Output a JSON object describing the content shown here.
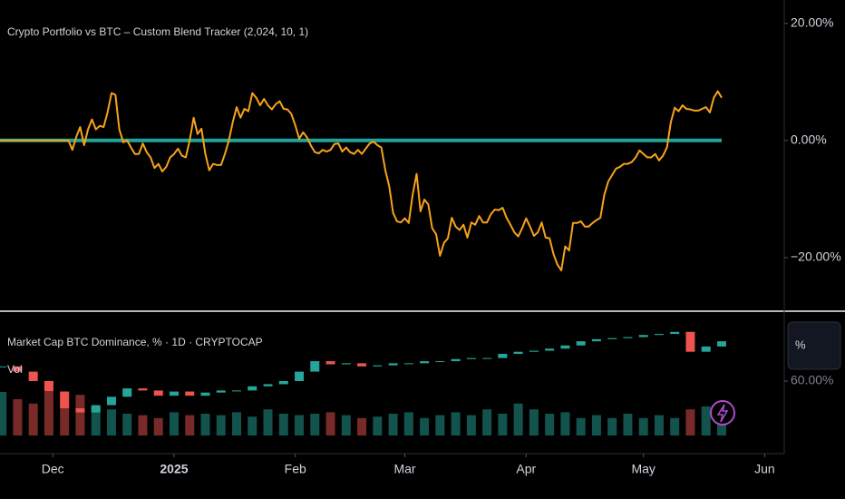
{
  "chart_data": [
    {
      "type": "line",
      "title": "Crypto Portfolio vs BTC – Custom Blend Tracker (2,024, 10, 1)",
      "series": [
        {
          "color": "#22a39a",
          "x": [
            -13.5,
            171
          ],
          "values": [
            0,
            0
          ]
        },
        {
          "color": "#f7a21b",
          "x": [
            -13.5,
            4,
            5,
            6,
            7,
            8,
            9,
            10,
            11,
            12,
            13,
            14,
            15,
            16,
            17,
            18,
            19,
            20,
            21,
            22,
            23,
            24,
            25,
            26,
            27,
            28,
            29,
            30,
            31,
            32,
            33,
            34,
            35,
            36,
            37,
            38,
            39,
            40,
            41,
            42,
            43,
            44,
            45,
            46,
            47,
            48,
            49,
            50,
            51,
            52,
            53,
            54,
            55,
            56,
            57,
            58,
            59,
            60,
            61,
            62,
            63,
            64,
            65,
            66,
            67,
            68,
            69,
            70,
            71,
            72,
            73,
            74,
            75,
            76,
            77,
            78,
            79,
            80,
            81,
            82,
            83,
            84,
            85,
            86,
            87,
            88,
            89,
            90,
            91,
            92,
            93,
            94,
            95,
            96,
            97,
            98,
            99,
            100,
            101,
            102,
            103,
            104,
            105,
            106,
            107,
            108,
            109,
            110,
            111,
            112,
            113,
            114,
            115,
            116,
            117,
            118,
            119,
            120,
            121,
            122,
            123,
            124,
            125,
            126,
            127,
            128,
            129,
            130,
            131,
            132,
            133,
            134,
            135,
            136,
            137,
            138,
            139,
            140,
            141,
            142,
            143,
            144,
            145,
            146,
            147,
            148,
            149,
            150,
            151,
            152,
            153,
            154,
            155,
            156,
            157,
            158,
            159,
            160,
            161,
            162,
            163,
            164,
            165,
            166,
            167,
            168,
            169,
            170,
            171
          ],
          "values": [
            0,
            0,
            -1.6,
            0.6,
            2.3,
            -0.8,
            1.9,
            3.6,
            1.9,
            2.5,
            2.3,
            4.8,
            8.1,
            7.8,
            1.9,
            -0.3,
            0,
            -1.2,
            -2.3,
            -2.3,
            -0.5,
            -2.0,
            -2.9,
            -4.7,
            -4.0,
            -5.3,
            -4.5,
            -2.9,
            -2.3,
            -1.4,
            -2.6,
            -2.9,
            0,
            3.9,
            1.1,
            2.0,
            -2.3,
            -5.1,
            -4.0,
            -4.2,
            -4.2,
            -2.3,
            0,
            3.1,
            5.7,
            3.9,
            5.4,
            5.0,
            8.1,
            7.3,
            6.0,
            7.1,
            6.0,
            5.3,
            6.2,
            6.7,
            5.4,
            5.3,
            4.5,
            2.6,
            0.3,
            1.4,
            0.5,
            -0.9,
            -2.0,
            -2.2,
            -1.6,
            -1.9,
            -1.6,
            -0.6,
            -0.5,
            -1.9,
            -1.2,
            -2.0,
            -2.3,
            -1.6,
            -2.3,
            -1.4,
            -0.5,
            -0.2,
            -0.8,
            -1.2,
            -5.1,
            -7.8,
            -12.4,
            -13.8,
            -14.0,
            -13.3,
            -14.1,
            -9.3,
            -5.7,
            -12.1,
            -10.1,
            -10.9,
            -15.0,
            -16.0,
            -19.7,
            -17.5,
            -16.7,
            -13.2,
            -14.7,
            -15.3,
            -14.4,
            -16.6,
            -14.0,
            -14.4,
            -12.9,
            -14.0,
            -14.0,
            -12.6,
            -11.8,
            -11.9,
            -11.5,
            -13.2,
            -14.4,
            -15.7,
            -16.4,
            -15.0,
            -13.3,
            -14.7,
            -16.3,
            -15.7,
            -14.0,
            -16.6,
            -16.7,
            -19.4,
            -21.2,
            -22.2,
            -18.1,
            -18.8,
            -14.1,
            -14.1,
            -13.8,
            -14.7,
            -14.7,
            -14.1,
            -13.6,
            -13.2,
            -9.3,
            -7.0,
            -5.9,
            -4.8,
            -4.5,
            -4.0,
            -4.0,
            -3.7,
            -2.9,
            -1.7,
            -2.3,
            -2.9,
            -2.9,
            -2.3,
            -3.4,
            -2.6,
            -1.2,
            3.1,
            5.6,
            5.0,
            6.0,
            5.4,
            5.3,
            5.1,
            5.1,
            5.4,
            5.7,
            4.8,
            7.3,
            8.4,
            7.3
          ]
        }
      ],
      "xlim": [
        -13.5,
        187
      ],
      "xticks": [
        {
          "value": 0,
          "label": "Dec"
        },
        {
          "value": 31,
          "label": "2025"
        },
        {
          "value": 62,
          "label": "Feb"
        },
        {
          "value": 90,
          "label": "Mar"
        },
        {
          "value": 121,
          "label": "Apr"
        },
        {
          "value": 151,
          "label": "May"
        },
        {
          "value": 182,
          "label": "Jun"
        }
      ],
      "ylim": [
        -28.7,
        24.0
      ],
      "yticks": [
        {
          "value": 20,
          "label": "20.00%"
        },
        {
          "value": 0,
          "label": "0.00%"
        },
        {
          "value": -20,
          "label": "−20.00%"
        }
      ]
    },
    {
      "type": "candlestick",
      "title": "Market Cap BTC Dominance, % · 1D · CRYPTOCAP",
      "volume_label": "Vol",
      "scale_button": "%",
      "up_color": "#26a69a",
      "down_color": "#ef5350",
      "x": [
        -13,
        -9,
        -5,
        -1,
        3,
        7,
        11,
        15,
        19,
        23,
        27,
        31,
        35,
        39,
        43,
        47,
        51,
        55,
        59,
        63,
        67,
        71,
        75,
        79,
        83,
        87,
        91,
        95,
        99,
        103,
        107,
        111,
        115,
        119,
        123,
        127,
        131,
        135,
        139,
        143,
        147,
        151,
        155,
        159,
        163,
        167,
        171
      ],
      "close": [
        61.4,
        60.9,
        60.0,
        59.0,
        57.4,
        57.0,
        57.7,
        58.5,
        59.3,
        59.1,
        58.6,
        59.0,
        58.6,
        58.9,
        59.1,
        59.1,
        59.5,
        59.7,
        60.0,
        60.9,
        61.9,
        61.6,
        61.7,
        61.4,
        61.5,
        61.7,
        61.7,
        61.9,
        61.9,
        62.1,
        62.2,
        62.2,
        62.6,
        62.8,
        62.9,
        63.1,
        63.4,
        63.8,
        64.0,
        64.1,
        64.2,
        64.4,
        64.5,
        64.7,
        62.8,
        63.3,
        63.8
      ],
      "volume": [
        30,
        25,
        22,
        30,
        25,
        28,
        20,
        18,
        15,
        14,
        12,
        16,
        14,
        15,
        14,
        16,
        13,
        18,
        15,
        14,
        15,
        16,
        14,
        12,
        13,
        15,
        16,
        12,
        14,
        16,
        14,
        18,
        15,
        22,
        18,
        15,
        16,
        12,
        14,
        12,
        15,
        12,
        14,
        12,
        18,
        20,
        15
      ],
      "xlim": [
        -13.5,
        187
      ],
      "ylim": [
        54.8,
        66.5
      ],
      "volume_ylim": [
        0,
        50
      ],
      "yticks": [
        {
          "value": 60,
          "label": "60.00%"
        }
      ]
    }
  ]
}
